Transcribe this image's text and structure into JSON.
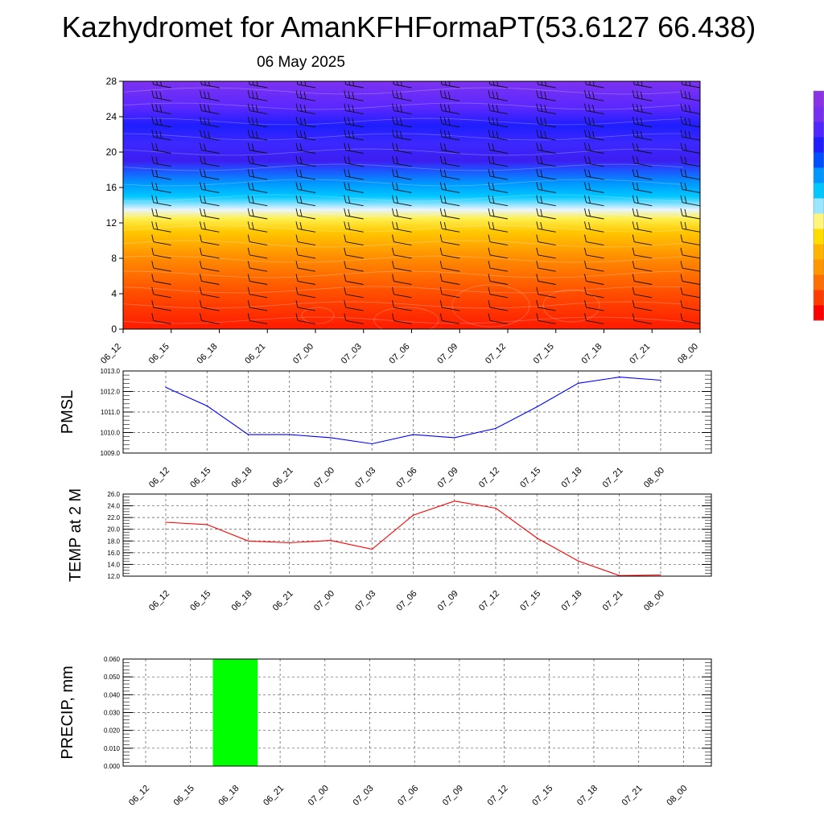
{
  "title": "Kazhydromet for AmanKFHFormaPT(53.6127 66.438)",
  "subtitle": "06 May 2025",
  "chart_data": [
    {
      "type": "heatmap",
      "x_categories": [
        "06_12",
        "06_15",
        "06_18",
        "06_21",
        "07_00",
        "07_03",
        "07_06",
        "07_09",
        "07_12",
        "07_15",
        "07_18",
        "07_21",
        "08_00"
      ],
      "y_ticks": [
        0,
        4,
        8,
        12,
        16,
        20,
        24,
        28
      ],
      "ylim": [
        0,
        28
      ],
      "colorscale": [
        {
          "level": 0,
          "color": "#ff1a00"
        },
        {
          "level": 4,
          "color": "#ff4d00"
        },
        {
          "level": 8,
          "color": "#ff8c00"
        },
        {
          "level": 11,
          "color": "#ffc800"
        },
        {
          "level": 12.5,
          "color": "#fff050"
        },
        {
          "level": 13.5,
          "color": "#e8f4ff"
        },
        {
          "level": 15,
          "color": "#00c8ff"
        },
        {
          "level": 16.5,
          "color": "#0096ff"
        },
        {
          "level": 18,
          "color": "#2050ff"
        },
        {
          "level": 19,
          "color": "#3c1ef0"
        },
        {
          "level": 21,
          "color": "#3c28ff"
        },
        {
          "level": 23,
          "color": "#1e1eff"
        },
        {
          "level": 25,
          "color": "#5a28ff"
        },
        {
          "level": 28,
          "color": "#7d32f0"
        }
      ],
      "colorbar_colors": [
        "#ff0000",
        "#ff3c00",
        "#ff6e00",
        "#ff9600",
        "#ffb400",
        "#ffdc00",
        "#fff57a",
        "#9be6ff",
        "#00c8ff",
        "#0096ff",
        "#0050ff",
        "#1e1eff",
        "#5028ff",
        "#7830f0",
        "#8c32e6"
      ]
    },
    {
      "type": "line",
      "ylabel": "PMSL",
      "x": [
        "06_12",
        "06_15",
        "06_18",
        "06_21",
        "07_00",
        "07_03",
        "07_06",
        "07_09",
        "07_12",
        "07_15",
        "07_18",
        "07_21",
        "08_00"
      ],
      "values": [
        1012.2,
        1011.3,
        1009.9,
        1009.9,
        1009.75,
        1009.45,
        1009.9,
        1009.75,
        1010.2,
        1011.25,
        1012.4,
        1012.7,
        1012.55
      ],
      "ylim": [
        1009.0,
        1013.0
      ],
      "y_ticks": [
        "1009.0",
        "1010.0",
        "1011.0",
        "1012.0",
        "1013.0"
      ],
      "color": "#0000ff",
      "grid": true
    },
    {
      "type": "line",
      "ylabel": "TEMP at 2 M",
      "x": [
        "06_12",
        "06_15",
        "06_18",
        "06_21",
        "07_00",
        "07_03",
        "07_06",
        "07_09",
        "07_12",
        "07_15",
        "07_18",
        "07_21",
        "08_00"
      ],
      "values": [
        21.2,
        20.8,
        18.0,
        17.7,
        18.1,
        16.6,
        22.4,
        24.8,
        23.6,
        18.5,
        14.6,
        12.1,
        12.2
      ],
      "ylim": [
        12.0,
        26.0
      ],
      "y_ticks": [
        "12.0",
        "14.0",
        "16.0",
        "18.0",
        "20.0",
        "22.0",
        "24.0",
        "26.0"
      ],
      "color": "#ff0000",
      "grid": true
    },
    {
      "type": "bar",
      "ylabel": "PRECIP, mm",
      "x": [
        "06_12",
        "06_15",
        "06_18",
        "06_21",
        "07_00",
        "07_03",
        "07_06",
        "07_09",
        "07_12",
        "07_15",
        "07_18",
        "07_21",
        "08_00"
      ],
      "values": [
        0,
        0,
        0.06,
        0,
        0,
        0,
        0,
        0,
        0,
        0,
        0,
        0,
        0
      ],
      "ylim": [
        0,
        0.06
      ],
      "y_ticks": [
        "0.000",
        "0.010",
        "0.020",
        "0.030",
        "0.040",
        "0.050",
        "0.060"
      ],
      "color": "#00ff00",
      "grid": true
    }
  ]
}
